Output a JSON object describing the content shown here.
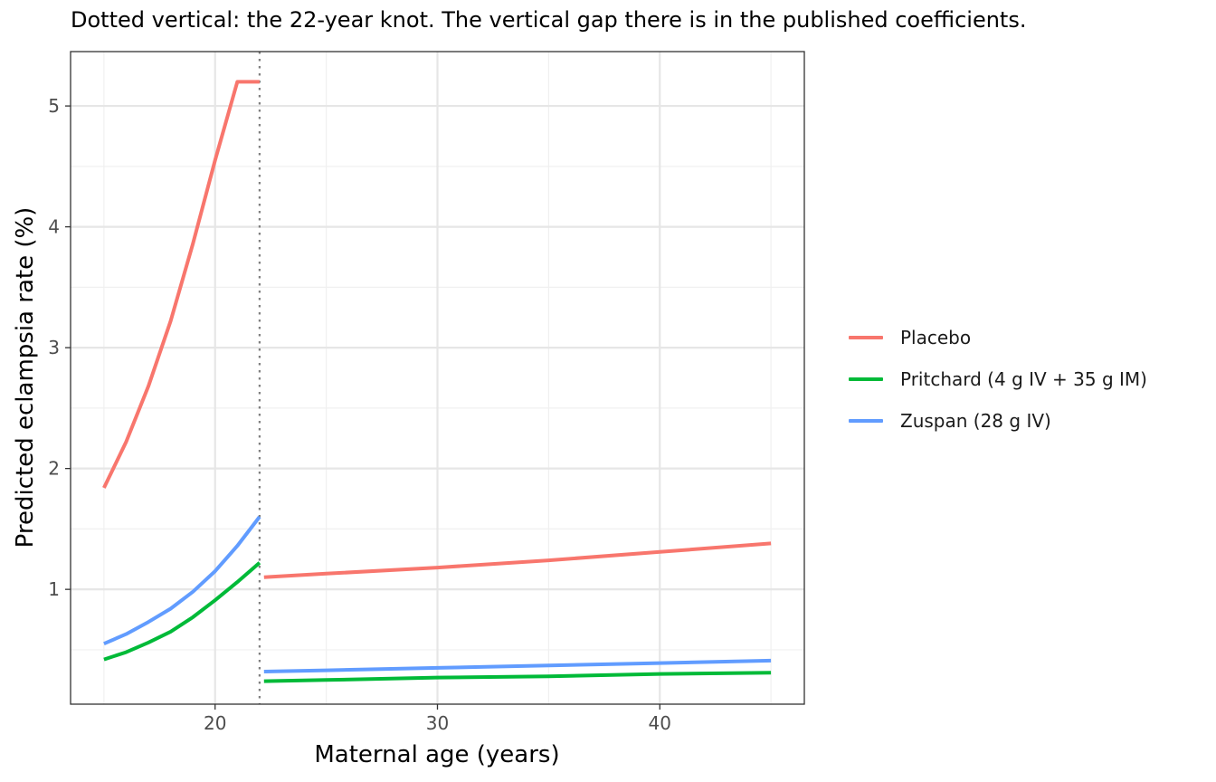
{
  "chart_data": {
    "type": "line",
    "title": "Dotted vertical: the 22-year knot. The vertical gap there is in the published coefficients.",
    "xlabel": "Maternal age (years)",
    "ylabel": "Predicted eclampsia rate (%)",
    "xlim": [
      13.5,
      46.5
    ],
    "ylim": [
      0.05,
      5.45
    ],
    "x_ticks": [
      20,
      30,
      40
    ],
    "y_ticks": [
      1,
      2,
      3,
      4,
      5
    ],
    "grid": true,
    "knot": 22,
    "knot_line": "dotted vertical",
    "legend_position": "right",
    "series": [
      {
        "name": "Placebo",
        "color": "#F8766D",
        "segments": [
          {
            "x": [
              15,
              16,
              17,
              18,
              19,
              20,
              21,
              22
            ],
            "y": [
              1.84,
              2.22,
              2.68,
              3.22,
              3.86,
              4.55,
              5.2,
              5.2
            ]
          },
          {
            "x": [
              22.2,
              25,
              30,
              35,
              40,
              45
            ],
            "y": [
              1.1,
              1.13,
              1.18,
              1.24,
              1.31,
              1.38
            ]
          }
        ]
      },
      {
        "name": "Pritchard (4 g IV + 35 g IM)",
        "color": "#00BA38",
        "segments": [
          {
            "x": [
              15,
              16,
              17,
              18,
              19,
              20,
              21,
              22
            ],
            "y": [
              0.42,
              0.48,
              0.56,
              0.65,
              0.77,
              0.91,
              1.06,
              1.22
            ]
          },
          {
            "x": [
              22.2,
              25,
              30,
              35,
              40,
              45
            ],
            "y": [
              0.24,
              0.25,
              0.27,
              0.28,
              0.3,
              0.31
            ]
          }
        ]
      },
      {
        "name": "Zuspan (28 g IV)",
        "color": "#619CFF",
        "segments": [
          {
            "x": [
              15,
              16,
              17,
              18,
              19,
              20,
              21,
              22
            ],
            "y": [
              0.55,
              0.63,
              0.73,
              0.84,
              0.98,
              1.15,
              1.36,
              1.6
            ]
          },
          {
            "x": [
              22.2,
              25,
              30,
              35,
              40,
              45
            ],
            "y": [
              0.32,
              0.33,
              0.35,
              0.37,
              0.39,
              0.41
            ]
          }
        ]
      }
    ]
  }
}
